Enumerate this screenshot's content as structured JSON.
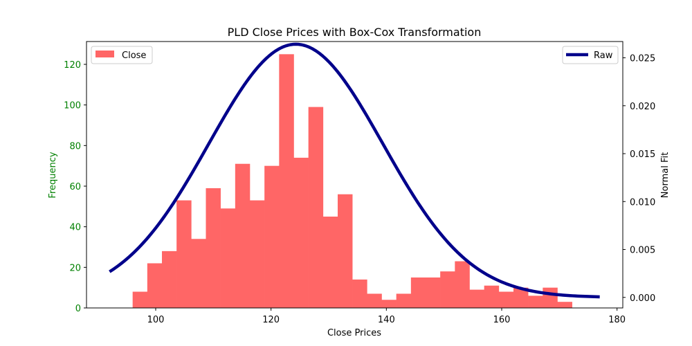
{
  "chart_data": {
    "type": "bar",
    "title": "PLD Close Prices with Box-Cox Transformation",
    "xlabel": "Close Prices",
    "ylabel_left": "Frequency",
    "ylabel_right": "Normal Fit",
    "xlim": [
      88,
      181
    ],
    "ylim_left": [
      0,
      131.25
    ],
    "ylim_right": [
      -0.0011,
      0.0267
    ],
    "x_ticks": [
      100,
      120,
      140,
      160,
      180
    ],
    "y_left_ticks": [
      0,
      20,
      40,
      60,
      80,
      100,
      120
    ],
    "y_right_ticks": [
      0.0,
      0.005,
      0.01,
      0.015,
      0.02,
      0.025
    ],
    "y_right_tick_labels": [
      "0.000",
      "0.005",
      "0.010",
      "0.015",
      "0.020",
      "0.025"
    ],
    "grid": false,
    "histogram": {
      "name": "Close",
      "color": "#ff6666",
      "bin_start": 96.0,
      "bin_width": 2.54,
      "counts": [
        8,
        22,
        28,
        53,
        34,
        59,
        49,
        71,
        53,
        70,
        125,
        74,
        99,
        45,
        56,
        14,
        7,
        4,
        7,
        15,
        15,
        18,
        23,
        9,
        11,
        8,
        10,
        6,
        10,
        3
      ]
    },
    "normal_fit": {
      "name": "Raw",
      "color": "#00008b",
      "mean": 124.3,
      "std": 15.1,
      "x_range": [
        92,
        177
      ]
    },
    "legend": {
      "left": {
        "label": "Close",
        "position": "upper-left"
      },
      "right": {
        "label": "Raw",
        "position": "upper-right"
      }
    },
    "colors": {
      "left_axis": "#008000",
      "right_axis": "#000000"
    }
  }
}
